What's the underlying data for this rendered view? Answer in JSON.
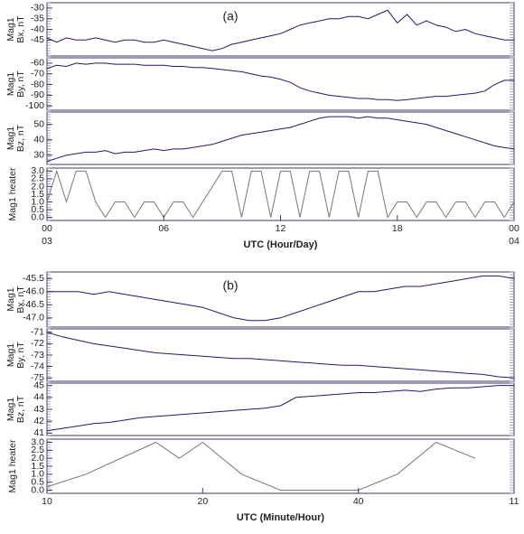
{
  "chart_data": [
    {
      "type": "line",
      "annotation": "(a)",
      "ylabel": [
        "Mag1",
        "Bx, nT"
      ],
      "color": "#1c1c6b",
      "xlim": [
        0,
        24
      ],
      "x": [
        0,
        0.5,
        1,
        1.5,
        2,
        2.5,
        3,
        3.5,
        4,
        4.5,
        5,
        5.5,
        6,
        6.5,
        7,
        7.5,
        8,
        8.5,
        9,
        9.5,
        10,
        10.5,
        11,
        11.5,
        12,
        12.5,
        13,
        13.5,
        14,
        14.5,
        15,
        15.5,
        16,
        16.5,
        17,
        17.5,
        18,
        18.5,
        19,
        19.5,
        20,
        20.5,
        21,
        21.5,
        22,
        22.5,
        23,
        23.5,
        24
      ],
      "values": [
        -44,
        -46,
        -44,
        -45,
        -45,
        -44,
        -45,
        -46,
        -45,
        -45,
        -46,
        -46,
        -45,
        -46,
        -47,
        -48,
        -49,
        -50,
        -49,
        -47,
        -46,
        -45,
        -44,
        -43,
        -42,
        -40,
        -38,
        -37,
        -36,
        -35,
        -35,
        -34,
        -34,
        -35,
        -33,
        -31,
        -37,
        -33,
        -38,
        -36,
        -38,
        -39,
        -41,
        -40,
        -42,
        -43,
        -44,
        -45,
        -45
      ],
      "ylim": [
        -52.5,
        -27.5
      ],
      "yticks": [
        -30,
        -35,
        -40,
        -45
      ]
    },
    {
      "type": "line",
      "ylabel": [
        "Mag1",
        "By, nT"
      ],
      "color": "#1c1c6b",
      "xlim": [
        0,
        24
      ],
      "x": [
        0,
        0.5,
        1,
        1.5,
        2,
        2.5,
        3,
        3.5,
        4,
        4.5,
        5,
        5.5,
        6,
        6.5,
        7,
        7.5,
        8,
        8.5,
        9,
        9.5,
        10,
        10.5,
        11,
        11.5,
        12,
        12.5,
        13,
        13.5,
        14,
        14.5,
        15,
        15.5,
        16,
        16.5,
        17,
        17.5,
        18,
        18.5,
        19,
        19.5,
        20,
        20.5,
        21,
        21.5,
        22,
        22.5,
        23,
        23.5,
        24
      ],
      "values": [
        -65,
        -62,
        -63,
        -60,
        -61,
        -60,
        -60,
        -61,
        -61,
        -61,
        -62,
        -62,
        -62,
        -63,
        -63,
        -64,
        -64,
        -65,
        -66,
        -67,
        -68,
        -70,
        -72,
        -73,
        -75,
        -78,
        -83,
        -86,
        -88,
        -90,
        -91,
        -92,
        -93,
        -93,
        -94,
        -94,
        -95,
        -94,
        -93,
        -92,
        -91,
        -91,
        -90,
        -89,
        -88,
        -86,
        -80,
        -76,
        -76
      ],
      "ylim": [
        -104,
        -55
      ],
      "yticks": [
        -60,
        -70,
        -80,
        -90,
        -100
      ]
    },
    {
      "type": "line",
      "ylabel": [
        "Mag1",
        "Bz, nT"
      ],
      "color": "#1c1c6b",
      "xlim": [
        0,
        24
      ],
      "x": [
        0,
        0.5,
        1,
        1.5,
        2,
        2.5,
        3,
        3.5,
        4,
        4.5,
        5,
        5.5,
        6,
        6.5,
        7,
        7.5,
        8,
        8.5,
        9,
        9.5,
        10,
        10.5,
        11,
        11.5,
        12,
        12.5,
        13,
        13.5,
        14,
        14.5,
        15,
        15.5,
        16,
        16.5,
        17,
        17.5,
        18,
        18.5,
        19,
        19.5,
        20,
        20.5,
        21,
        21.5,
        22,
        22.5,
        23,
        23.5,
        24
      ],
      "values": [
        26,
        28,
        30,
        31,
        32,
        32,
        33,
        31,
        32,
        32,
        33,
        34,
        33,
        34,
        34,
        35,
        36,
        37,
        39,
        41,
        43,
        44,
        45,
        46,
        47,
        48,
        50,
        52,
        54,
        55,
        55,
        55,
        54,
        55,
        54,
        54,
        53,
        52,
        51,
        50,
        48,
        46,
        44,
        42,
        40,
        38,
        36,
        35,
        34
      ],
      "ylim": [
        24,
        58
      ],
      "yticks": [
        30,
        40,
        50
      ]
    },
    {
      "type": "line",
      "ylabel": [
        "Mag1 heater"
      ],
      "color": "#777777",
      "xlim": [
        0,
        24
      ],
      "x": [
        0,
        0.5,
        1,
        1.5,
        2,
        2.5,
        3,
        3.5,
        4,
        4.5,
        5,
        5.5,
        6,
        6.5,
        7,
        7.5,
        8,
        8.5,
        9,
        9.5,
        10,
        10.5,
        11,
        11.5,
        12,
        12.5,
        13,
        13.5,
        14,
        14.5,
        15,
        15.5,
        16,
        16.5,
        17,
        17.5,
        18,
        18.5,
        19,
        19.5,
        20,
        20.5,
        21,
        21.5,
        22,
        22.5,
        23,
        23.5,
        24
      ],
      "values": [
        1,
        3,
        1,
        3,
        3,
        1,
        0,
        1,
        1,
        0,
        1,
        1,
        0,
        1,
        1,
        0,
        1,
        2,
        3,
        3,
        0,
        3,
        3,
        0,
        3,
        3,
        0,
        3,
        3,
        0,
        3,
        3,
        0,
        3,
        3,
        0,
        1,
        1,
        0,
        1,
        1,
        0,
        1,
        1,
        0,
        1,
        1,
        0,
        1
      ],
      "ylim": [
        -0.2,
        3.2
      ],
      "yticks": [
        {
          "value": 0,
          "label": "0.0"
        },
        0.5,
        {
          "value": 1,
          "label": "1.0"
        },
        1.5,
        {
          "value": 2,
          "label": "2.0"
        },
        2.5,
        {
          "value": 3,
          "label": "3.0"
        }
      ],
      "xticks": [
        {
          "value": 0,
          "label": "00"
        },
        {
          "value": 6,
          "label": "06"
        },
        12,
        18,
        {
          "value": 24,
          "label": "00"
        }
      ],
      "day_labels": [
        {
          "value": 0,
          "label": "03"
        },
        {
          "value": 24,
          "label": "04"
        }
      ],
      "xlabel": "UTC (Hour/Day)"
    },
    {
      "type": "line",
      "annotation": "(b)",
      "ylabel": [
        "Mag1",
        "Bx, nT"
      ],
      "color": "#1c1c6b",
      "xlim": [
        0,
        60
      ],
      "x": [
        0,
        2,
        4,
        6,
        8,
        10,
        12,
        14,
        16,
        18,
        20,
        22,
        24,
        26,
        28,
        30,
        32,
        34,
        36,
        38,
        40,
        42,
        44,
        46,
        48,
        50,
        52,
        54,
        56,
        58,
        60
      ],
      "values": [
        -46.0,
        -46.0,
        -46.0,
        -46.1,
        -46.0,
        -46.1,
        -46.2,
        -46.3,
        -46.4,
        -46.5,
        -46.6,
        -46.8,
        -47.0,
        -47.1,
        -47.1,
        -47.0,
        -46.8,
        -46.6,
        -46.4,
        -46.2,
        -46.0,
        -46.0,
        -45.9,
        -45.8,
        -45.8,
        -45.7,
        -45.6,
        -45.5,
        -45.4,
        -45.4,
        -45.5
      ],
      "ylim": [
        -47.35,
        -45.25
      ],
      "yticks": [
        {
          "value": -45.5,
          "label": "-45.5"
        },
        {
          "value": -46,
          "label": "-46.0"
        },
        {
          "value": -46.5,
          "label": "-46.5"
        },
        {
          "value": -47,
          "label": "-47.0"
        }
      ]
    },
    {
      "type": "line",
      "ylabel": [
        "Mag1",
        "By, nT"
      ],
      "color": "#1c1c6b",
      "xlim": [
        0,
        60
      ],
      "x": [
        0,
        2,
        4,
        6,
        8,
        10,
        12,
        14,
        16,
        18,
        20,
        22,
        24,
        26,
        28,
        30,
        32,
        34,
        36,
        38,
        40,
        42,
        44,
        46,
        48,
        50,
        52,
        54,
        56,
        58,
        60
      ],
      "values": [
        -71.0,
        -71.4,
        -71.7,
        -72.0,
        -72.2,
        -72.4,
        -72.6,
        -72.8,
        -72.9,
        -73.0,
        -73.1,
        -73.2,
        -73.3,
        -73.3,
        -73.4,
        -73.5,
        -73.6,
        -73.7,
        -73.8,
        -73.9,
        -73.9,
        -74.0,
        -74.1,
        -74.2,
        -74.3,
        -74.4,
        -74.5,
        -74.6,
        -74.7,
        -74.9,
        -75.0
      ],
      "ylim": [
        -75.3,
        -70.7
      ],
      "yticks": [
        -71,
        -72,
        -73,
        -74,
        -75
      ]
    },
    {
      "type": "line",
      "ylabel": [
        "Mag1",
        "Bz, nT"
      ],
      "color": "#1c1c6b",
      "xlim": [
        0,
        60
      ],
      "x": [
        0,
        2,
        4,
        6,
        8,
        10,
        12,
        14,
        16,
        18,
        20,
        22,
        24,
        26,
        28,
        30,
        32,
        34,
        36,
        38,
        40,
        42,
        44,
        46,
        48,
        50,
        52,
        54,
        56,
        58,
        60
      ],
      "values": [
        41.2,
        41.4,
        41.6,
        41.8,
        41.9,
        42.1,
        42.3,
        42.4,
        42.5,
        42.6,
        42.7,
        42.8,
        42.9,
        43.0,
        43.1,
        43.3,
        44.0,
        44.1,
        44.2,
        44.3,
        44.4,
        44.4,
        44.5,
        44.6,
        44.5,
        44.7,
        44.8,
        44.8,
        44.9,
        45.0,
        45.0
      ],
      "ylim": [
        40.8,
        45.2
      ],
      "yticks": [
        41,
        42,
        43,
        44,
        45
      ]
    },
    {
      "type": "line",
      "ylabel": [
        "Mag1 heater"
      ],
      "color": "#777777",
      "xlim": [
        0,
        60
      ],
      "x": [
        0,
        5,
        14,
        17,
        20,
        25,
        30,
        40,
        45,
        50,
        55
      ],
      "values": [
        0.2,
        1,
        3,
        2,
        3,
        1,
        0,
        0,
        1,
        3,
        2
      ],
      "ylim": [
        -0.2,
        3.2
      ],
      "yticks": [
        {
          "value": 0,
          "label": "0.0"
        },
        0.5,
        {
          "value": 1,
          "label": "1.0"
        },
        1.5,
        {
          "value": 2,
          "label": "2.0"
        },
        2.5,
        {
          "value": 3,
          "label": "3.0"
        }
      ],
      "xticks": [
        {
          "value": 0,
          "label": "10"
        },
        20,
        40,
        {
          "value": 60,
          "label": "11"
        }
      ],
      "xlabel": "UTC (Minute/Hour)"
    }
  ]
}
